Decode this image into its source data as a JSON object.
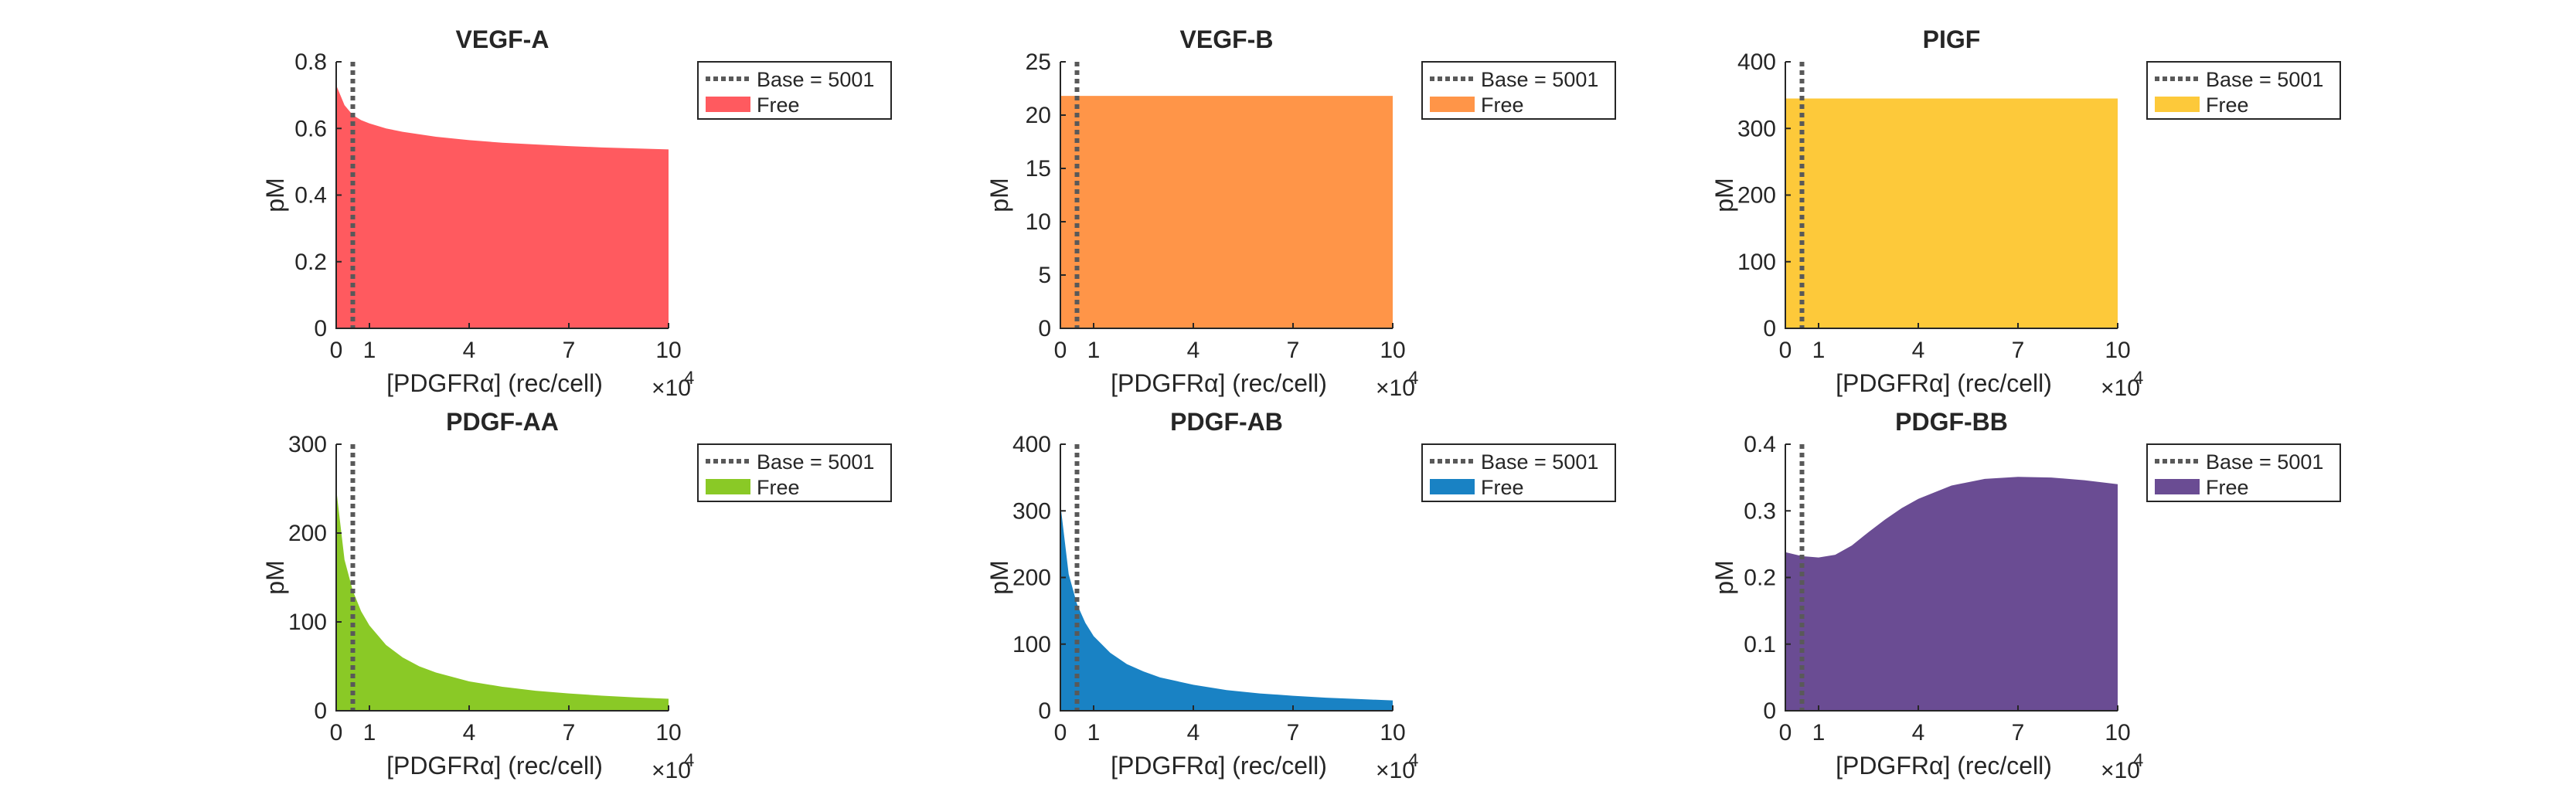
{
  "chart_data": [
    {
      "type": "area",
      "title": "VEGF-A",
      "xlabel": "[PDGFRα] (rec/cell)",
      "xscale_label": "×10",
      "xscale_exp": "4",
      "ylabel": "pM",
      "xlim": [
        0,
        10
      ],
      "ylim": [
        0,
        0.8
      ],
      "xticks": [
        0,
        1,
        4,
        7,
        10
      ],
      "yticks": [
        0,
        0.2,
        0.4,
        0.6,
        0.8
      ],
      "baseline_x": 0.5001,
      "legend": [
        "Base = 5001",
        "Free"
      ],
      "legend_position": "outside-right-top",
      "color": "#ff5a5f",
      "series": [
        {
          "name": "Free",
          "x": [
            0,
            0.25,
            0.5,
            0.75,
            1,
            1.5,
            2,
            3,
            4,
            5,
            6,
            7,
            8,
            9,
            10
          ],
          "y": [
            0.73,
            0.67,
            0.64,
            0.625,
            0.615,
            0.6,
            0.59,
            0.575,
            0.565,
            0.557,
            0.552,
            0.547,
            0.543,
            0.54,
            0.537
          ]
        }
      ]
    },
    {
      "type": "area",
      "title": "VEGF-B",
      "xlabel": "[PDGFRα] (rec/cell)",
      "xscale_label": "×10",
      "xscale_exp": "4",
      "ylabel": "pM",
      "xlim": [
        0,
        10
      ],
      "ylim": [
        0,
        25
      ],
      "xticks": [
        0,
        1,
        4,
        7,
        10
      ],
      "yticks": [
        0,
        5,
        10,
        15,
        20,
        25
      ],
      "baseline_x": 0.5001,
      "legend": [
        "Base = 5001",
        "Free"
      ],
      "legend_position": "outside-right-top",
      "color": "#ff9548",
      "series": [
        {
          "name": "Free",
          "x": [
            0,
            10
          ],
          "y": [
            21.8,
            21.8
          ]
        }
      ]
    },
    {
      "type": "area",
      "title": "PIGF",
      "xlabel": "[PDGFRα] (rec/cell)",
      "xscale_label": "×10",
      "xscale_exp": "4",
      "ylabel": "pM",
      "xlim": [
        0,
        10
      ],
      "ylim": [
        0,
        400
      ],
      "xticks": [
        0,
        1,
        4,
        7,
        10
      ],
      "yticks": [
        0,
        100,
        200,
        300,
        400
      ],
      "baseline_x": 0.5001,
      "legend": [
        "Base = 5001",
        "Free"
      ],
      "legend_position": "outside-right-top",
      "color": "#fdc93a",
      "series": [
        {
          "name": "Free",
          "x": [
            0,
            10
          ],
          "y": [
            345,
            345
          ]
        }
      ]
    },
    {
      "type": "area",
      "title": "PDGF-AA",
      "xlabel": "[PDGFRα] (rec/cell)",
      "xscale_label": "×10",
      "xscale_exp": "4",
      "ylabel": "pM",
      "xlim": [
        0,
        10
      ],
      "ylim": [
        0,
        300
      ],
      "xticks": [
        0,
        1,
        4,
        7,
        10
      ],
      "yticks": [
        0,
        100,
        200,
        300
      ],
      "baseline_x": 0.5001,
      "legend": [
        "Base = 5001",
        "Free"
      ],
      "legend_position": "outside-right-top",
      "color": "#8ac926",
      "series": [
        {
          "name": "Free",
          "x": [
            0,
            0.25,
            0.5,
            0.75,
            1,
            1.5,
            2,
            2.5,
            3,
            4,
            5,
            6,
            7,
            8,
            9,
            10
          ],
          "y": [
            250,
            170,
            135,
            112,
            96,
            74,
            60,
            50,
            43,
            33,
            27,
            22.5,
            19.5,
            17,
            15,
            13.5
          ]
        }
      ]
    },
    {
      "type": "area",
      "title": "PDGF-AB",
      "xlabel": "[PDGFRα] (rec/cell)",
      "xscale_label": "×10",
      "xscale_exp": "4",
      "ylabel": "pM",
      "xlim": [
        0,
        10
      ],
      "ylim": [
        0,
        400
      ],
      "xticks": [
        0,
        1,
        4,
        7,
        10
      ],
      "yticks": [
        0,
        100,
        200,
        300,
        400
      ],
      "baseline_x": 0.5001,
      "legend": [
        "Base = 5001",
        "Free"
      ],
      "legend_position": "outside-right-top",
      "color": "#1982c4",
      "series": [
        {
          "name": "Free",
          "x": [
            0,
            0.25,
            0.5,
            0.75,
            1,
            1.5,
            2,
            2.5,
            3,
            4,
            5,
            6,
            7,
            8,
            9,
            10
          ],
          "y": [
            310,
            205,
            160,
            132,
            112,
            87,
            70,
            59,
            50,
            39,
            31,
            26,
            22.5,
            19.5,
            17.5,
            15.5
          ]
        }
      ]
    },
    {
      "type": "area",
      "title": "PDGF-BB",
      "xlabel": "[PDGFRα] (rec/cell)",
      "xscale_label": "×10",
      "xscale_exp": "4",
      "ylabel": "pM",
      "xlim": [
        0,
        10
      ],
      "ylim": [
        0,
        0.4
      ],
      "xticks": [
        0,
        1,
        4,
        7,
        10
      ],
      "yticks": [
        0,
        0.1,
        0.2,
        0.3,
        0.4
      ],
      "baseline_x": 0.5001,
      "legend": [
        "Base = 5001",
        "Free"
      ],
      "legend_position": "outside-right-top",
      "color": "#6a4c93",
      "series": [
        {
          "name": "Free",
          "x": [
            0,
            0.5,
            1,
            1.5,
            2,
            2.5,
            3,
            3.5,
            4,
            5,
            6,
            7,
            8,
            9,
            10
          ],
          "y": [
            0.238,
            0.232,
            0.23,
            0.234,
            0.248,
            0.268,
            0.287,
            0.304,
            0.318,
            0.338,
            0.348,
            0.351,
            0.35,
            0.346,
            0.34
          ]
        }
      ]
    }
  ]
}
